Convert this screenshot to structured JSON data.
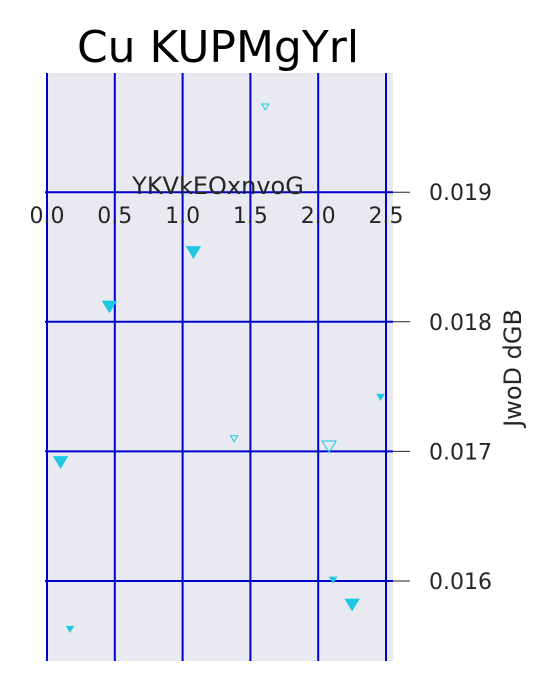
{
  "chart_data": {
    "type": "scatter",
    "title": "Cu KUPMgYrl",
    "xlabel": "YKVkEOxnvoG",
    "ylabel": "JwoD dGB",
    "xlim": [
      0.0,
      2.55
    ],
    "ylim": [
      0.01554,
      0.01985
    ],
    "x_ticks": [
      "0.0",
      "0.5",
      "1.0",
      "1.5",
      "2.0",
      "2.5"
    ],
    "y_ticks": [
      "0.016",
      "0.017",
      "0.018",
      "0.019"
    ],
    "x_axis_position": "top",
    "y_axis_position": "right",
    "grid": true,
    "colors": {
      "background": "#e9e9f2",
      "grid": "#0000cc",
      "marker": "#1ec8e2",
      "tick": "#262626"
    },
    "points": [
      {
        "x": 1.61,
        "y": 0.01966,
        "size": "small",
        "filled": false
      },
      {
        "x": 1.08,
        "y": 0.01854,
        "size": "large",
        "filled": true
      },
      {
        "x": 0.46,
        "y": 0.01812,
        "size": "large",
        "filled": true
      },
      {
        "x": 2.46,
        "y": 0.01742,
        "size": "small",
        "filled": true
      },
      {
        "x": 1.38,
        "y": 0.0171,
        "size": "small",
        "filled": false
      },
      {
        "x": 2.08,
        "y": 0.01704,
        "size": "large",
        "filled": false
      },
      {
        "x": 0.1,
        "y": 0.01692,
        "size": "large",
        "filled": true
      },
      {
        "x": 2.11,
        "y": 0.01601,
        "size": "small",
        "filled": true
      },
      {
        "x": 2.25,
        "y": 0.01582,
        "size": "large",
        "filled": true
      },
      {
        "x": 0.17,
        "y": 0.01563,
        "size": "small",
        "filled": true
      }
    ]
  }
}
